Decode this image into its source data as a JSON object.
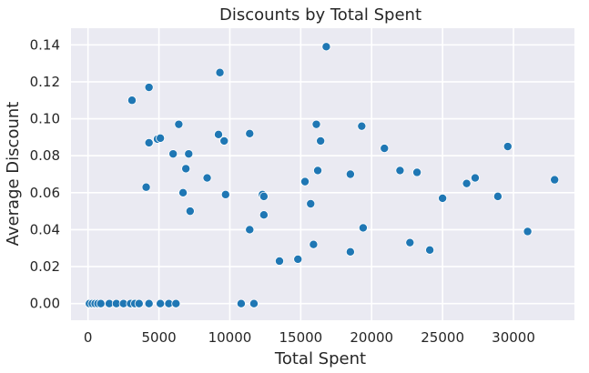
{
  "chart_data": {
    "type": "scatter",
    "title": "Discounts by Total Spent",
    "xlabel": "Total Spent",
    "ylabel": "Average Discount",
    "xlim": [
      -1200,
      34300
    ],
    "ylim": [
      -0.009,
      0.149
    ],
    "xticks": [
      0,
      5000,
      10000,
      15000,
      20000,
      25000,
      30000
    ],
    "xtick_labels": [
      "0",
      "5000",
      "10000",
      "15000",
      "20000",
      "25000",
      "30000"
    ],
    "yticks": [
      0.0,
      0.02,
      0.04,
      0.06,
      0.08,
      0.1,
      0.12,
      0.14
    ],
    "ytick_labels": [
      "0.00",
      "0.02",
      "0.04",
      "0.06",
      "0.08",
      "0.10",
      "0.12",
      "0.14"
    ],
    "grid": true,
    "background": "#eaeaf2",
    "point_color": "#1f77b4",
    "series": [
      {
        "points": [
          [
            100,
            0
          ],
          [
            300,
            0
          ],
          [
            500,
            0
          ],
          [
            700,
            0
          ],
          [
            900,
            0
          ],
          [
            1500,
            0
          ],
          [
            2000,
            0
          ],
          [
            2500,
            0
          ],
          [
            3000,
            0
          ],
          [
            3300,
            0
          ],
          [
            3600,
            0
          ],
          [
            4300,
            0
          ],
          [
            5100,
            0
          ],
          [
            5700,
            0
          ],
          [
            6200,
            0
          ],
          [
            10800,
            0
          ],
          [
            11700,
            0
          ],
          [
            3100,
            0.11
          ],
          [
            4300,
            0.117
          ],
          [
            4300,
            0.087
          ],
          [
            4900,
            0.089
          ],
          [
            5100,
            0.0895
          ],
          [
            4100,
            0.063
          ],
          [
            6000,
            0.081
          ],
          [
            6400,
            0.097
          ],
          [
            6700,
            0.06
          ],
          [
            6900,
            0.073
          ],
          [
            7100,
            0.081
          ],
          [
            7200,
            0.05
          ],
          [
            8400,
            0.068
          ],
          [
            9200,
            0.0915
          ],
          [
            9300,
            0.125
          ],
          [
            9600,
            0.088
          ],
          [
            9700,
            0.059
          ],
          [
            11400,
            0.092
          ],
          [
            11400,
            0.04
          ],
          [
            12300,
            0.059
          ],
          [
            12400,
            0.058
          ],
          [
            12400,
            0.048
          ],
          [
            13500,
            0.023
          ],
          [
            14800,
            0.024
          ],
          [
            15300,
            0.066
          ],
          [
            15700,
            0.054
          ],
          [
            15900,
            0.032
          ],
          [
            16100,
            0.097
          ],
          [
            16200,
            0.072
          ],
          [
            16400,
            0.088
          ],
          [
            16800,
            0.139
          ],
          [
            18500,
            0.07
          ],
          [
            18500,
            0.028
          ],
          [
            19300,
            0.096
          ],
          [
            19400,
            0.041
          ],
          [
            20900,
            0.084
          ],
          [
            22000,
            0.072
          ],
          [
            22700,
            0.033
          ],
          [
            23200,
            0.071
          ],
          [
            24100,
            0.029
          ],
          [
            25000,
            0.057
          ],
          [
            26700,
            0.065
          ],
          [
            27300,
            0.068
          ],
          [
            28900,
            0.058
          ],
          [
            29600,
            0.085
          ],
          [
            31000,
            0.039
          ],
          [
            32900,
            0.067
          ]
        ]
      }
    ]
  }
}
